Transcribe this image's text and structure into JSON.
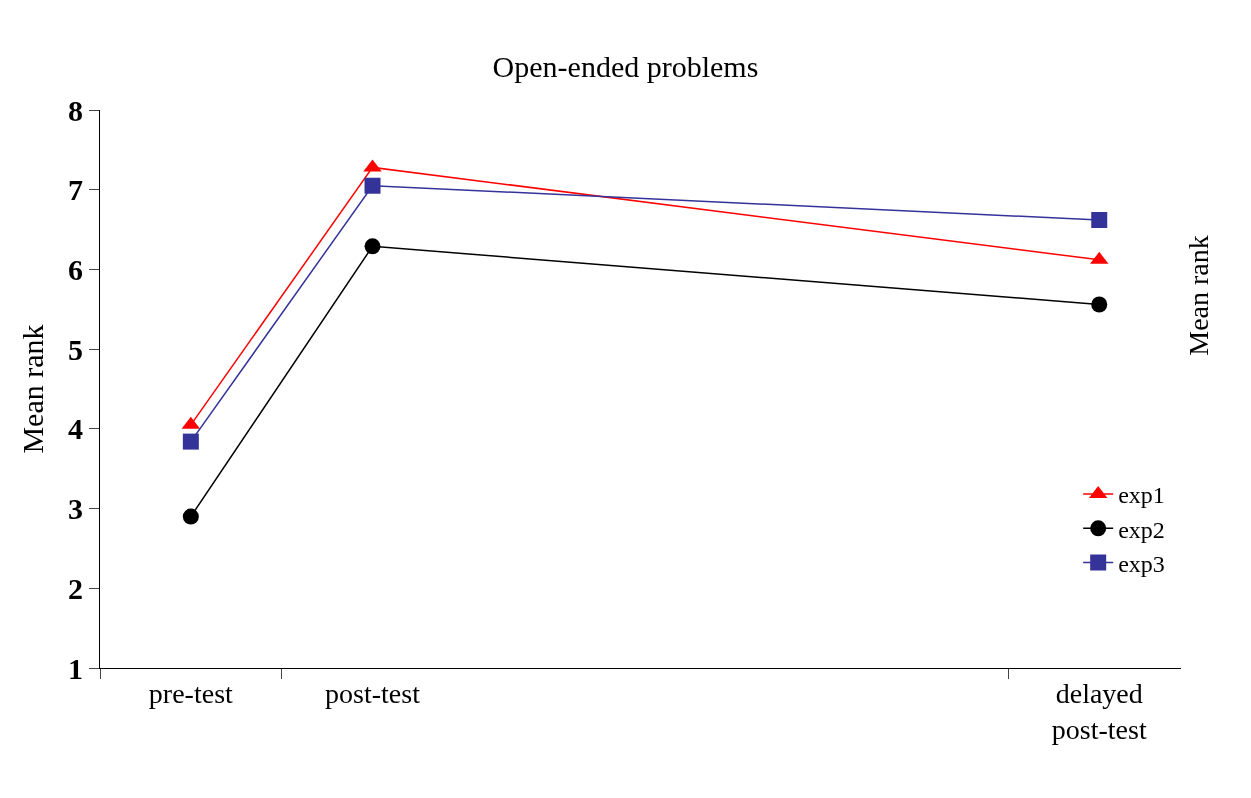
{
  "chart_data": {
    "type": "line",
    "title": "Open-ended problems",
    "ylabel": "Mean rank",
    "categories": [
      "pre-test",
      "post-test",
      null,
      null,
      null,
      "delayed\npost-test"
    ],
    "series": [
      {
        "name": "exp1",
        "color": "#ff0000",
        "marker": "triangle",
        "values": [
          4.05,
          7.28,
          null,
          null,
          null,
          6.12
        ]
      },
      {
        "name": "exp2",
        "color": "#000000",
        "marker": "circle",
        "values": [
          2.9,
          6.29,
          null,
          null,
          null,
          5.56
        ]
      },
      {
        "name": "exp3",
        "color": "#333399",
        "marker": "square",
        "values": [
          3.84,
          7.05,
          null,
          null,
          null,
          6.62
        ]
      }
    ],
    "ylim": [
      1,
      8
    ],
    "yticks": [
      1,
      2,
      3,
      4,
      5,
      6,
      7,
      8
    ],
    "legend": "right",
    "annotations": [
      "Mean rank"
    ]
  }
}
